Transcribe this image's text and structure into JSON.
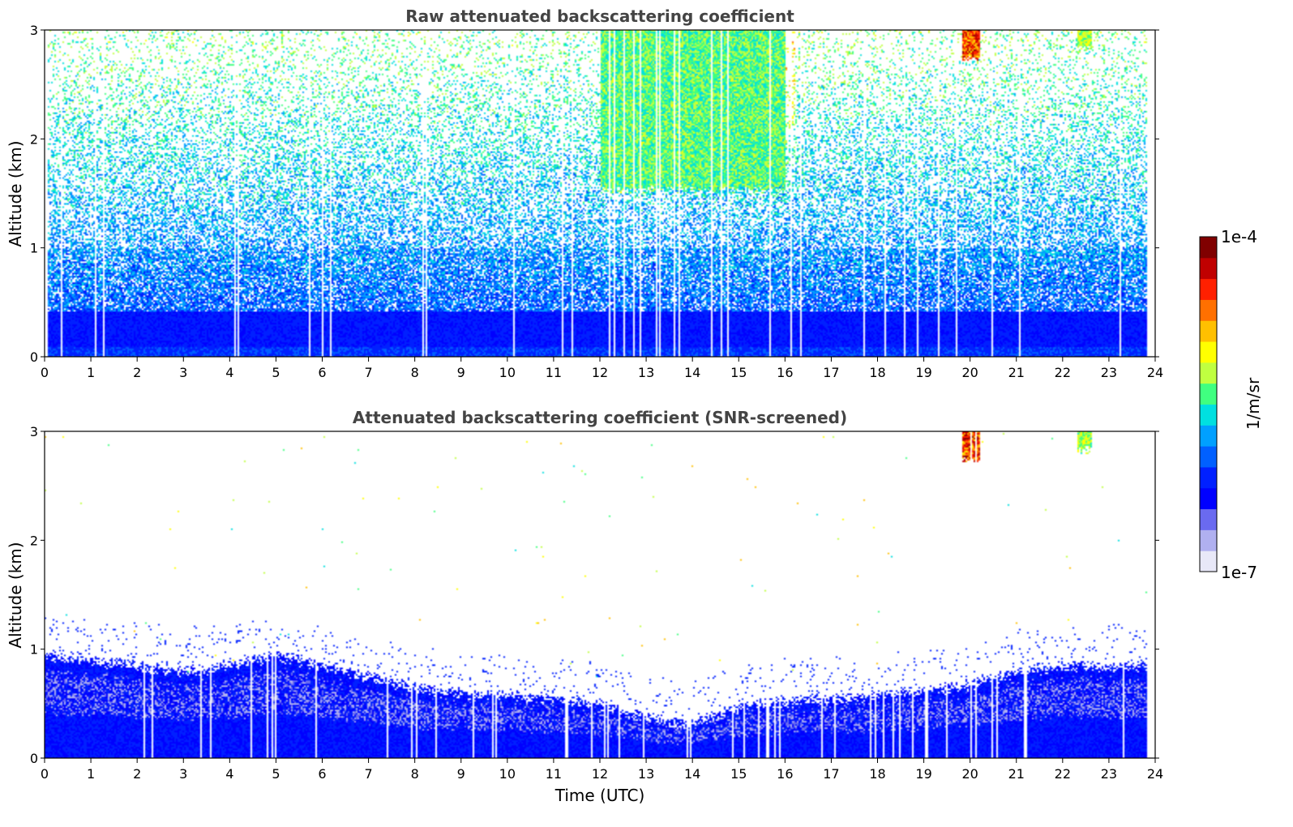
{
  "chart_data": [
    {
      "type": "heatmap",
      "title": "Raw attenuated backscattering coefficient",
      "xlabel": "",
      "ylabel": "Altitude (km)",
      "xlim": [
        0,
        24
      ],
      "ylim": [
        0,
        3
      ],
      "x_ticks": [
        "0",
        "1",
        "2",
        "3",
        "4",
        "5",
        "6",
        "7",
        "8",
        "9",
        "10",
        "11",
        "12",
        "13",
        "14",
        "15",
        "16",
        "17",
        "18",
        "19",
        "20",
        "21",
        "22",
        "23",
        "24"
      ],
      "y_ticks": [
        "0",
        "1",
        "2",
        "3"
      ],
      "variant": "raw",
      "features": [
        {
          "description": "dense low-level aerosol layer",
          "x_range": [
            0,
            24
          ],
          "alt_top_km": 0.45,
          "level": 0.3
        },
        {
          "description": "enhanced signal aloft",
          "x_range": [
            12,
            16
          ],
          "alt_range_km": [
            1.5,
            3.0
          ],
          "level": 0.6
        },
        {
          "description": "high cloud",
          "x_range": [
            19.8,
            20.2
          ],
          "alt_range_km": [
            2.7,
            3.0
          ],
          "level": 0.9
        },
        {
          "description": "high cloud",
          "x_range": [
            22.3,
            22.6
          ],
          "alt_range_km": [
            2.8,
            3.0
          ],
          "level": 0.65
        }
      ]
    },
    {
      "type": "heatmap",
      "title": "Attenuated backscattering coefficient (SNR-screened)",
      "xlabel": "Time (UTC)",
      "ylabel": "Altitude (km)",
      "xlim": [
        0,
        24
      ],
      "ylim": [
        0,
        3
      ],
      "x_ticks": [
        "0",
        "1",
        "2",
        "3",
        "4",
        "5",
        "6",
        "7",
        "8",
        "9",
        "10",
        "11",
        "12",
        "13",
        "14",
        "15",
        "16",
        "17",
        "18",
        "19",
        "20",
        "21",
        "22",
        "23",
        "24"
      ],
      "y_ticks": [
        "0",
        "1",
        "2",
        "3"
      ],
      "variant": "screened",
      "boundary_layer_top_km": [
        [
          0,
          0.95
        ],
        [
          1,
          0.9
        ],
        [
          2,
          0.85
        ],
        [
          3,
          0.8
        ],
        [
          4,
          0.85
        ],
        [
          5,
          0.95
        ],
        [
          5.5,
          0.9
        ],
        [
          6,
          0.85
        ],
        [
          7,
          0.75
        ],
        [
          8,
          0.65
        ],
        [
          9,
          0.6
        ],
        [
          10,
          0.58
        ],
        [
          11,
          0.55
        ],
        [
          12,
          0.5
        ],
        [
          13,
          0.38
        ],
        [
          13.7,
          0.33
        ],
        [
          14,
          0.32
        ],
        [
          15,
          0.48
        ],
        [
          16,
          0.52
        ],
        [
          17,
          0.55
        ],
        [
          18,
          0.58
        ],
        [
          19,
          0.62
        ],
        [
          20,
          0.68
        ],
        [
          21,
          0.8
        ],
        [
          22,
          0.85
        ],
        [
          23,
          0.85
        ],
        [
          23.8,
          0.85
        ]
      ],
      "features": [
        {
          "description": "high cloud",
          "x_range": [
            19.8,
            20.2
          ],
          "alt_range_km": [
            2.7,
            3.0
          ],
          "level": 0.9
        },
        {
          "description": "high cloud",
          "x_range": [
            22.3,
            22.6
          ],
          "alt_range_km": [
            2.8,
            3.0
          ],
          "level": 0.65
        }
      ]
    }
  ],
  "colorbar": {
    "label": "1/m/sr",
    "min_label": "1e-7",
    "max_label": "1e-4",
    "scale": "log",
    "colormap": [
      "#e8e8f8",
      "#b0b0f0",
      "#6a6af0",
      "#0000ff",
      "#0020ff",
      "#0060ff",
      "#00a0ff",
      "#00e0e0",
      "#40ff80",
      "#c0ff40",
      "#ffff00",
      "#ffc000",
      "#ff7000",
      "#ff2000",
      "#c00000",
      "#800000"
    ]
  }
}
